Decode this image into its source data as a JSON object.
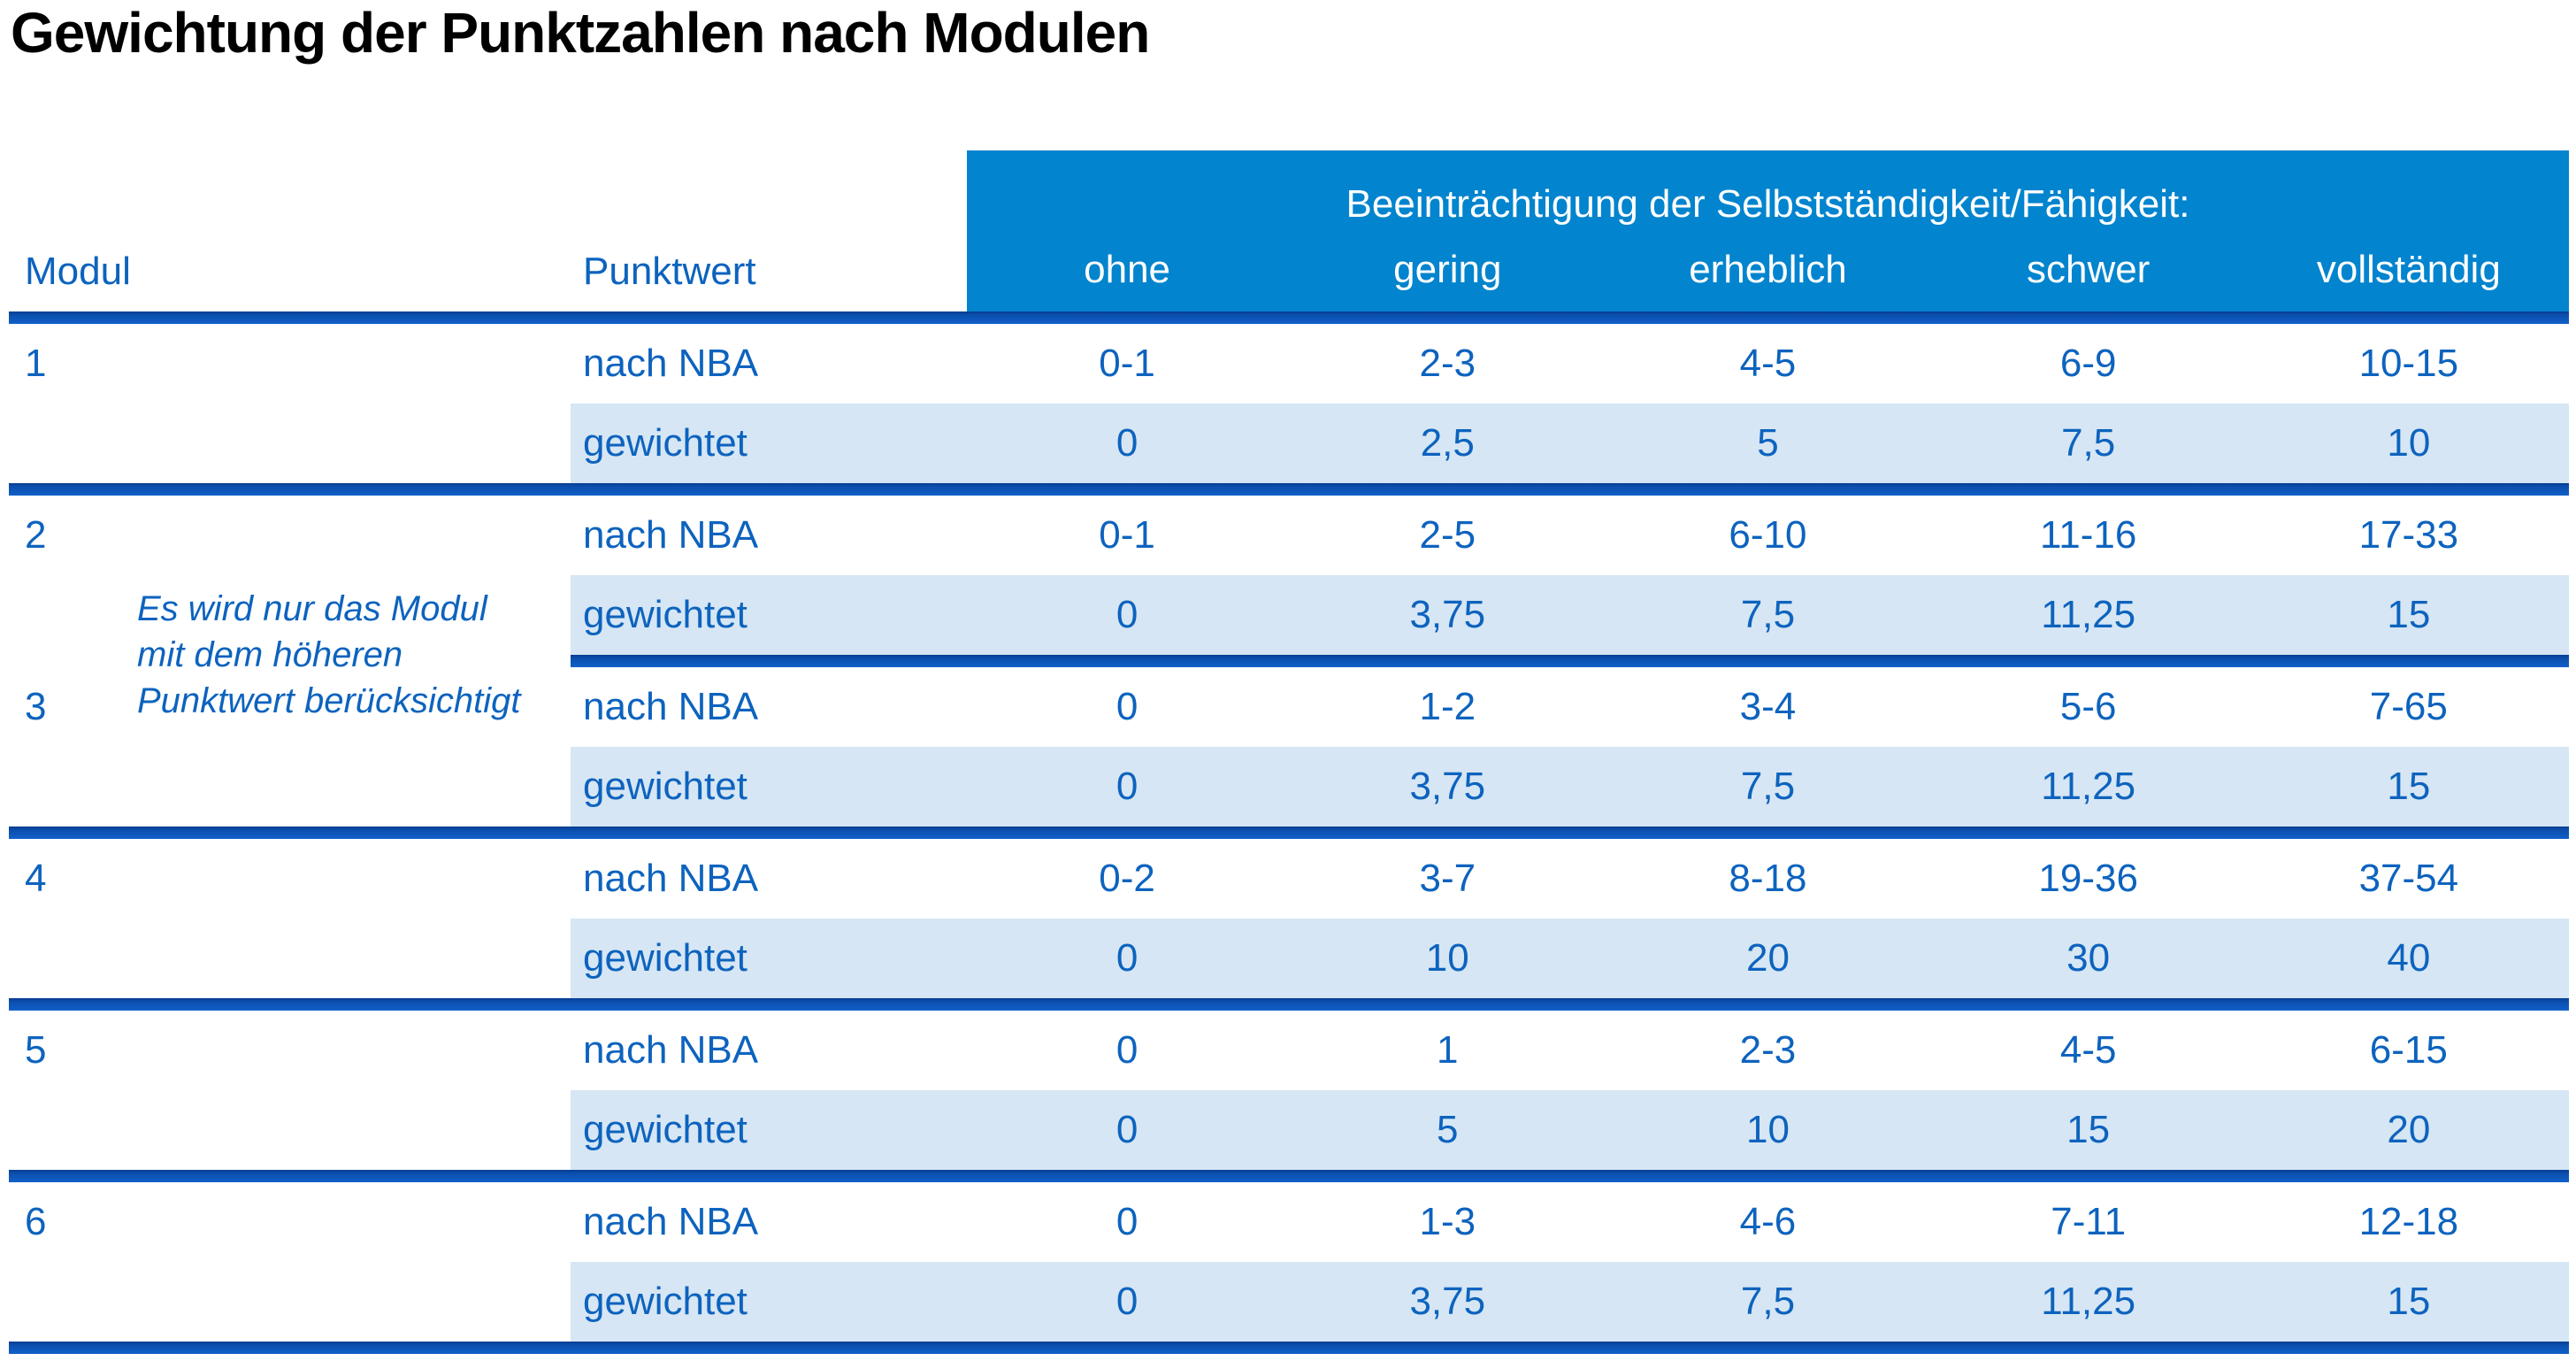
{
  "page": {
    "title": "Gewichtung der Punktzahlen nach Modulen"
  },
  "colors": {
    "header_bg": "#0284ce",
    "divider_blue": "#1160ca",
    "divider_dark_edge": "#083d92",
    "alt_row_bg": "#d6e6f4",
    "text_blue": "#0d63be",
    "header_text": "#ffffff",
    "title_text": "#000000"
  },
  "table": {
    "col_headers": {
      "modul": "Modul",
      "punktwert": "Punktwert",
      "group": "Beeinträchtigung der Selbstständigkeit/Fähigkeit:",
      "levels": [
        "ohne",
        "gering",
        "erheblich",
        "schwer",
        "vollständig"
      ]
    },
    "note_lines": [
      "Es wird nur das Modul",
      "mit dem höheren",
      "Punktwert berücksichtigt"
    ],
    "row_labels": {
      "nba": "nach NBA",
      "weighted": "gewichtet"
    },
    "modules": [
      {
        "id": "1",
        "rows": [
          {
            "label": "nach NBA",
            "values": [
              "0-1",
              "2-3",
              "4-5",
              "6-9",
              "10-15"
            ]
          },
          {
            "label": "gewichtet",
            "values": [
              "0",
              "2,5",
              "5",
              "7,5",
              "10"
            ]
          }
        ]
      },
      {
        "id": "2",
        "rows": [
          {
            "label": "nach NBA",
            "values": [
              "0-1",
              "2-5",
              "6-10",
              "11-16",
              "17-33"
            ]
          },
          {
            "label": "gewichtet",
            "values": [
              "0",
              "3,75",
              "7,5",
              "11,25",
              "15"
            ]
          }
        ]
      },
      {
        "id": "3",
        "rows": [
          {
            "label": "nach NBA",
            "values": [
              "0",
              "1-2",
              "3-4",
              "5-6",
              "7-65"
            ]
          },
          {
            "label": "gewichtet",
            "values": [
              "0",
              "3,75",
              "7,5",
              "11,25",
              "15"
            ]
          }
        ]
      },
      {
        "id": "4",
        "rows": [
          {
            "label": "nach NBA",
            "values": [
              "0-2",
              "3-7",
              "8-18",
              "19-36",
              "37-54"
            ]
          },
          {
            "label": "gewichtet",
            "values": [
              "0",
              "10",
              "20",
              "30",
              "40"
            ]
          }
        ]
      },
      {
        "id": "5",
        "rows": [
          {
            "label": "nach NBA",
            "values": [
              "0",
              "1",
              "2-3",
              "4-5",
              "6-15"
            ]
          },
          {
            "label": "gewichtet",
            "values": [
              "0",
              "5",
              "10",
              "15",
              "20"
            ]
          }
        ]
      },
      {
        "id": "6",
        "rows": [
          {
            "label": "nach NBA",
            "values": [
              "0",
              "1-3",
              "4-6",
              "7-11",
              "12-18"
            ]
          },
          {
            "label": "gewichtet",
            "values": [
              "0",
              "3,75",
              "7,5",
              "11,25",
              "15"
            ]
          }
        ]
      }
    ]
  }
}
